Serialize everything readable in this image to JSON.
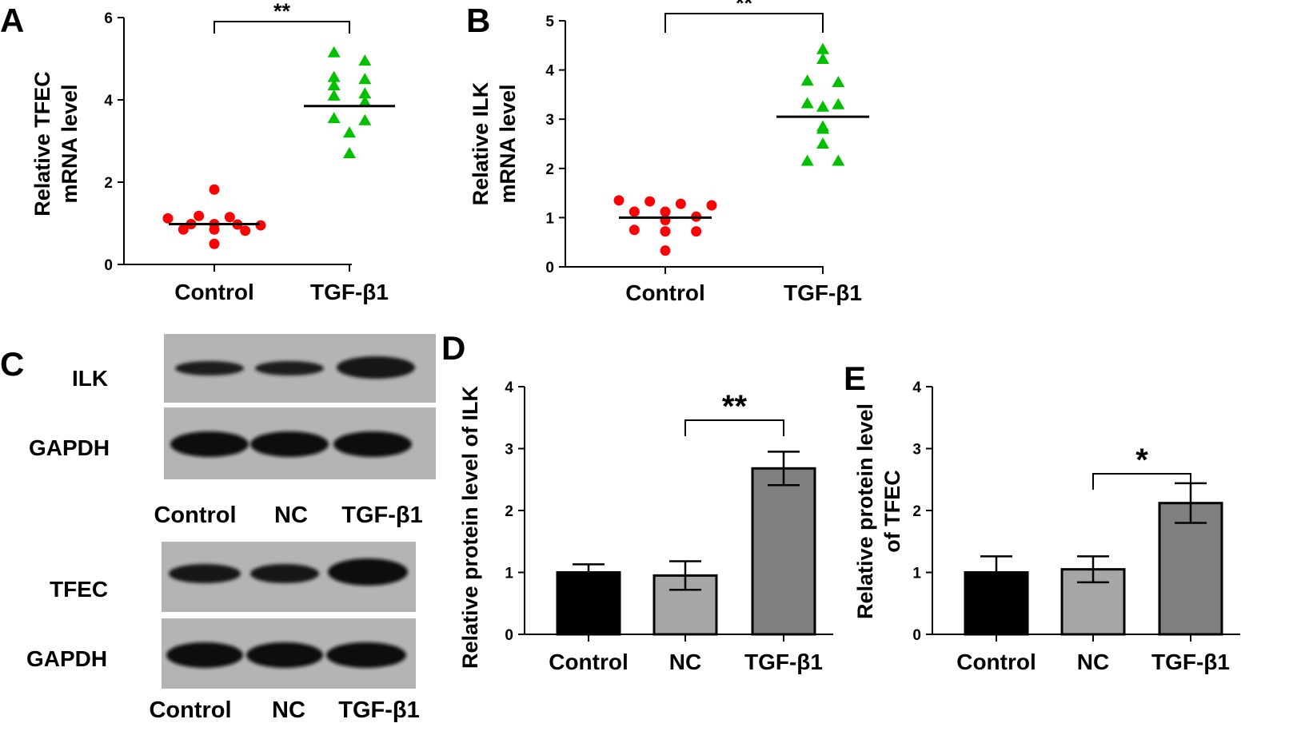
{
  "chart_data": [
    {
      "id": "A",
      "panel_label": "A",
      "type": "scatter",
      "categories": [
        "Control",
        "TGF-β1"
      ],
      "ylabel_lines": [
        "Relative TFEC",
        "mRNA level"
      ],
      "ylim": [
        0,
        6
      ],
      "yticks": [
        "0",
        "2",
        "4",
        "6"
      ],
      "series": [
        {
          "name": "Control",
          "marker": "circle",
          "color": "#ff0000",
          "values": [
            1.82,
            1.18,
            1.15,
            1.12,
            0.98,
            0.98,
            0.97,
            0.95,
            0.85,
            0.85,
            0.82,
            0.5
          ],
          "mean": 0.98
        },
        {
          "name": "TGF-β1",
          "marker": "triangle",
          "color": "#00c000",
          "values": [
            5.15,
            4.95,
            4.55,
            4.5,
            4.35,
            4.15,
            4.1,
            3.95,
            3.55,
            3.5,
            3.2,
            2.7
          ],
          "mean": 3.85
        }
      ],
      "significance": [
        {
          "from": 0,
          "to": 1,
          "label": "**"
        }
      ]
    },
    {
      "id": "B",
      "panel_label": "B",
      "type": "scatter",
      "categories": [
        "Control",
        "TGF-β1"
      ],
      "ylabel_lines": [
        "Relative ILK",
        "mRNA level"
      ],
      "ylim": [
        0,
        5
      ],
      "yticks": [
        "0",
        "1",
        "2",
        "3",
        "4",
        "5"
      ],
      "series": [
        {
          "name": "Control",
          "marker": "circle",
          "color": "#ff0000",
          "values": [
            1.35,
            1.33,
            1.28,
            1.25,
            1.12,
            1.12,
            1.02,
            0.95,
            0.75,
            0.72,
            0.72,
            0.33
          ],
          "mean": 1.0
        },
        {
          "name": "TGF-β1",
          "marker": "triangle",
          "color": "#00c000",
          "values": [
            4.42,
            4.22,
            3.78,
            3.75,
            3.32,
            3.3,
            3.25,
            2.85,
            2.8,
            2.5,
            2.15,
            2.15
          ],
          "mean": 3.05
        }
      ],
      "significance": [
        {
          "from": 0,
          "to": 1,
          "label": "**"
        }
      ]
    },
    {
      "id": "D",
      "panel_label": "D",
      "type": "bar",
      "categories": [
        "Control",
        "NC",
        "TGF-β1"
      ],
      "ylabel_lines": [
        "Relative protein level of ILK"
      ],
      "ylim": [
        0,
        4
      ],
      "yticks": [
        "0",
        "1",
        "2",
        "3",
        "4"
      ],
      "values": [
        1.0,
        0.95,
        2.68
      ],
      "errors": [
        0.13,
        0.23,
        0.27
      ],
      "bar_colors": [
        "#000000",
        "#a6a6a6",
        "#808080"
      ],
      "significance": [
        {
          "from": 1,
          "to": 2,
          "label": "**"
        }
      ]
    },
    {
      "id": "E",
      "panel_label": "E",
      "type": "bar",
      "categories": [
        "Control",
        "NC",
        "TGF-β1"
      ],
      "ylabel_lines": [
        "Relative protein level",
        "of TFEC"
      ],
      "ylim": [
        0,
        4
      ],
      "yticks": [
        "0",
        "1",
        "2",
        "3",
        "4"
      ],
      "values": [
        1.0,
        1.05,
        2.12
      ],
      "errors": [
        0.26,
        0.21,
        0.32
      ],
      "bar_colors": [
        "#000000",
        "#a6a6a6",
        "#808080"
      ],
      "significance": [
        {
          "from": 1,
          "to": 2,
          "label": "*"
        }
      ]
    }
  ],
  "blot": {
    "panel_label": "C",
    "top": {
      "rows": [
        "ILK",
        "GAPDH"
      ],
      "lanes": [
        "Control",
        "NC",
        "TGF-β1"
      ]
    },
    "bottom": {
      "rows": [
        "TFEC",
        "GAPDH"
      ],
      "lanes": [
        "Control",
        "NC",
        "TGF-β1"
      ]
    }
  }
}
